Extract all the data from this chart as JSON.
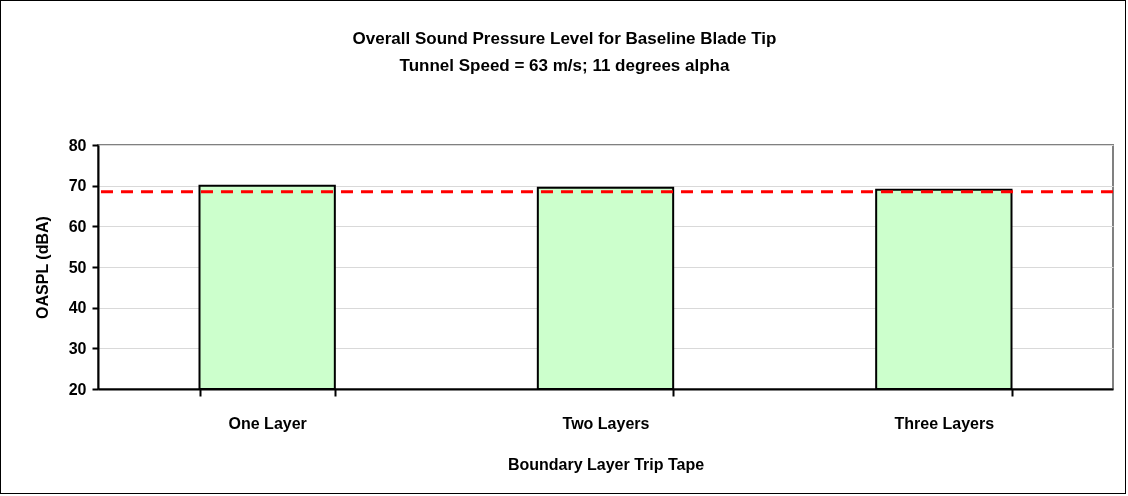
{
  "chart_data": {
    "type": "bar",
    "title": "Overall Sound Pressure Level for Baseline Blade Tip",
    "subtitle": "Tunnel Speed = 63 m/s; 11 degrees alpha",
    "xlabel": "Boundary Layer Trip Tape",
    "ylabel": "OASPL (dBA)",
    "categories": [
      "One Layer",
      "Two Layers",
      "Three Layers"
    ],
    "values": [
      70.0,
      69.5,
      69.0
    ],
    "color": "#ccffcc",
    "ylim": [
      20,
      80
    ],
    "yticks": [
      20,
      30,
      40,
      50,
      60,
      70,
      80
    ],
    "grid": "y",
    "ref_lines": [
      {
        "axis": "y",
        "value": 68.5,
        "color": "#ff0000",
        "line_style": "dashed"
      }
    ]
  }
}
